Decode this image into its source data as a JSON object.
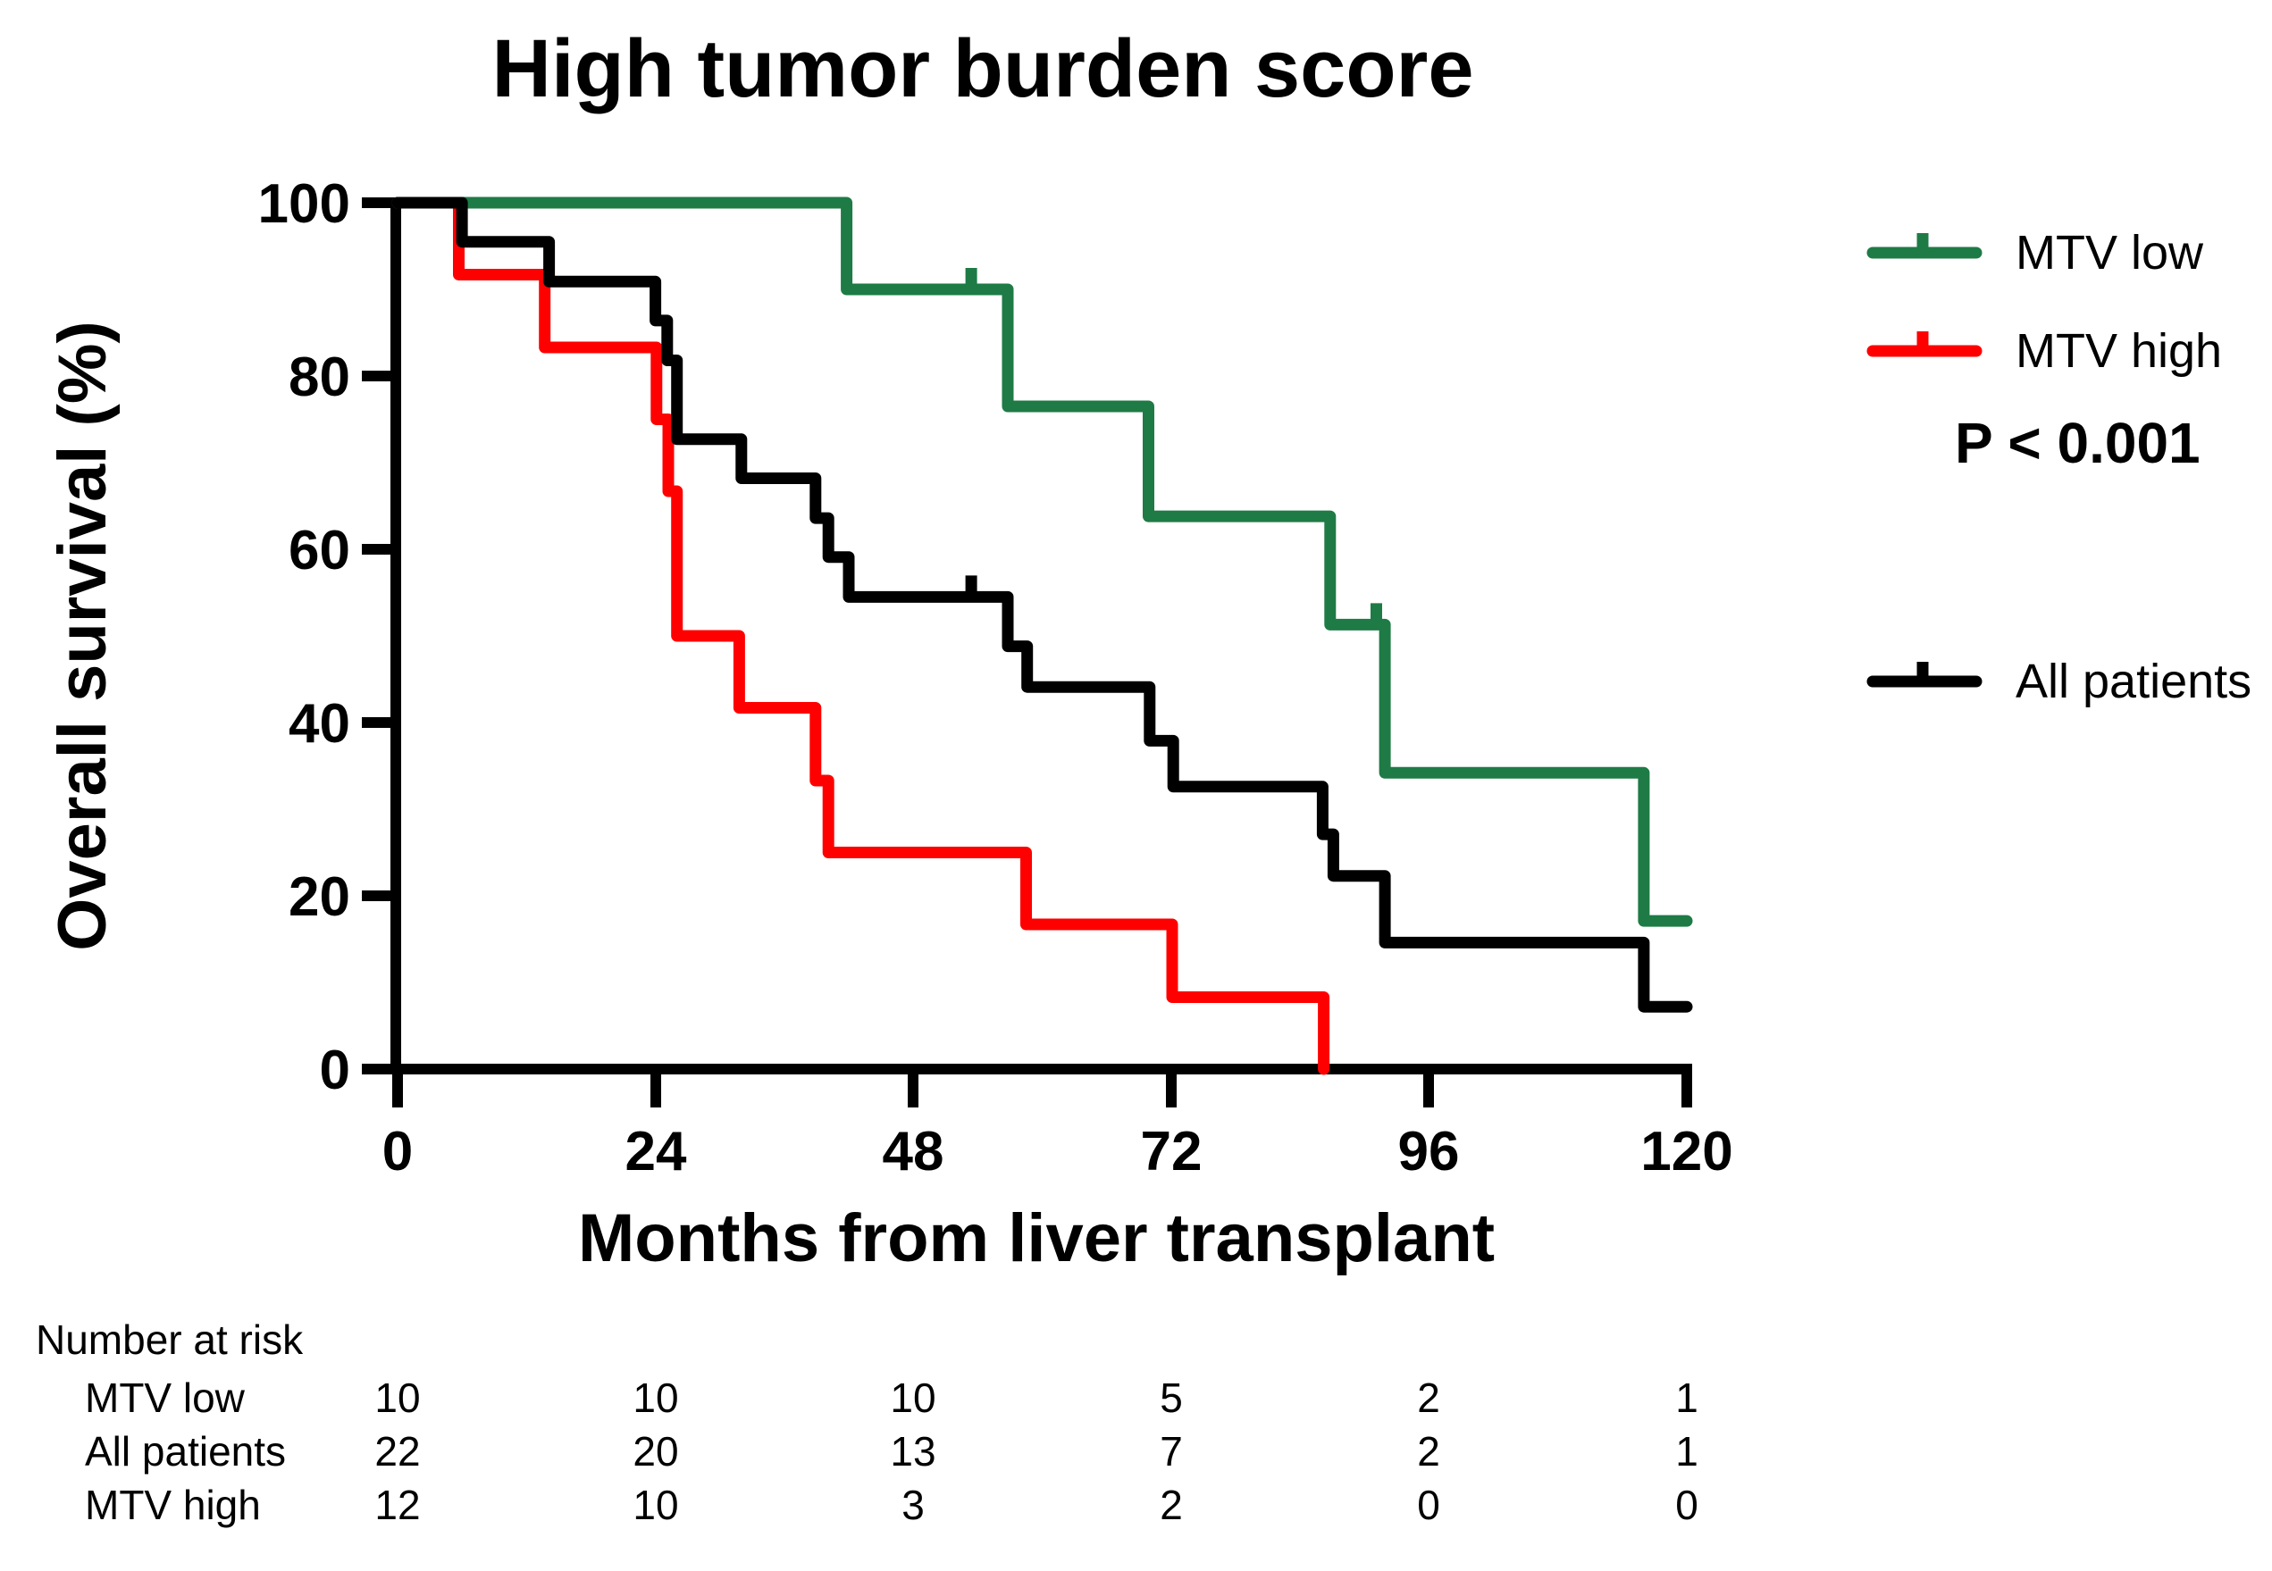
{
  "title": "High tumor burden score",
  "x_axis": {
    "label": "Months from liver transplant",
    "ticks": [
      "0",
      "24",
      "48",
      "72",
      "96",
      "120"
    ]
  },
  "y_axis": {
    "label": "Overall survival (%)",
    "ticks": [
      "100",
      "80",
      "60",
      "40",
      "20",
      "0"
    ]
  },
  "legend": {
    "items": [
      {
        "label": "MTV low",
        "color": "#1e7b45"
      },
      {
        "label": "MTV high",
        "color": "#ff0000"
      },
      {
        "label": "All patients",
        "color": "#000000"
      }
    ],
    "p_value": "P < 0.001"
  },
  "chart_data": {
    "type": "line",
    "subtype": "kaplan-meier-step-curves",
    "title": "High tumor burden score",
    "xlabel": "Months from liver transplant",
    "ylabel": "Overall survival (%)",
    "xlim": [
      0,
      120
    ],
    "ylim": [
      0,
      100
    ],
    "x_ticks": [
      0,
      24,
      48,
      72,
      96,
      120
    ],
    "y_ticks": [
      0,
      20,
      40,
      60,
      80,
      100
    ],
    "grid": false,
    "legend_position": "right",
    "p_value": "P < 0.001",
    "series": [
      {
        "name": "MTV high",
        "color": "#ff0000",
        "points": [
          [
            0,
            100
          ],
          [
            5.7,
            100
          ],
          [
            5.7,
            91.7
          ],
          [
            13.7,
            91.7
          ],
          [
            13.7,
            83.3
          ],
          [
            24.1,
            83.3
          ],
          [
            24.1,
            75
          ],
          [
            25.2,
            75
          ],
          [
            25.2,
            66.7
          ],
          [
            26,
            66.7
          ],
          [
            26,
            50
          ],
          [
            31.8,
            50
          ],
          [
            31.8,
            41.7
          ],
          [
            38.9,
            41.7
          ],
          [
            38.9,
            33.3
          ],
          [
            40.1,
            33.3
          ],
          [
            40.1,
            25
          ],
          [
            58.5,
            25
          ],
          [
            58.5,
            16.7
          ],
          [
            72.1,
            16.7
          ],
          [
            72.1,
            8.3
          ],
          [
            86.2,
            8.3
          ],
          [
            86.2,
            0
          ]
        ],
        "censor_marks": []
      },
      {
        "name": "MTV low",
        "color": "#1e7b45",
        "points": [
          [
            0,
            100
          ],
          [
            41.8,
            100
          ],
          [
            41.8,
            90
          ],
          [
            56.8,
            90
          ],
          [
            56.8,
            76.5
          ],
          [
            69.9,
            76.5
          ],
          [
            69.9,
            63.8
          ],
          [
            86.8,
            63.8
          ],
          [
            86.8,
            51.3
          ],
          [
            91.9,
            51.3
          ],
          [
            91.9,
            34.2
          ],
          [
            116,
            34.2
          ],
          [
            116,
            17.1
          ],
          [
            120,
            17.1
          ]
        ],
        "censor_marks": [
          [
            53.4,
            90
          ],
          [
            91.1,
            51.3
          ]
        ]
      },
      {
        "name": "All patients",
        "color": "#000000",
        "points": [
          [
            0,
            100
          ],
          [
            6,
            100
          ],
          [
            6,
            95.5
          ],
          [
            14.1,
            95.5
          ],
          [
            14.1,
            90.9
          ],
          [
            24,
            90.9
          ],
          [
            24,
            86.4
          ],
          [
            25.1,
            86.4
          ],
          [
            25.1,
            81.8
          ],
          [
            26,
            81.8
          ],
          [
            26,
            72.7
          ],
          [
            32,
            72.7
          ],
          [
            32,
            68.2
          ],
          [
            38.9,
            68.2
          ],
          [
            38.9,
            63.6
          ],
          [
            40.1,
            63.6
          ],
          [
            40.1,
            59.1
          ],
          [
            42,
            59.1
          ],
          [
            42,
            54.5
          ],
          [
            56.8,
            54.5
          ],
          [
            56.8,
            48.8
          ],
          [
            58.6,
            48.8
          ],
          [
            58.6,
            44.1
          ],
          [
            70,
            44.1
          ],
          [
            70,
            37.9
          ],
          [
            72.2,
            37.9
          ],
          [
            72.2,
            32.6
          ],
          [
            86.1,
            32.6
          ],
          [
            86.1,
            27.1
          ],
          [
            87.1,
            27.1
          ],
          [
            87.1,
            22.3
          ],
          [
            91.9,
            22.3
          ],
          [
            91.9,
            14.6
          ],
          [
            116,
            14.6
          ],
          [
            116,
            7.2
          ],
          [
            120,
            7.2
          ]
        ],
        "censor_marks": [
          [
            53.4,
            54.5
          ]
        ]
      }
    ]
  },
  "risk_table": {
    "header": "Number at risk",
    "time_points": [
      0,
      24,
      48,
      72,
      96,
      120
    ],
    "rows": [
      {
        "label": "MTV low",
        "values": [
          "10",
          "10",
          "10",
          "5",
          "2",
          "1"
        ]
      },
      {
        "label": "All patients",
        "values": [
          "22",
          "20",
          "13",
          "7",
          "2",
          "1"
        ]
      },
      {
        "label": "MTV high",
        "values": [
          "12",
          "10",
          "3",
          "2",
          "0",
          "0"
        ]
      }
    ]
  }
}
